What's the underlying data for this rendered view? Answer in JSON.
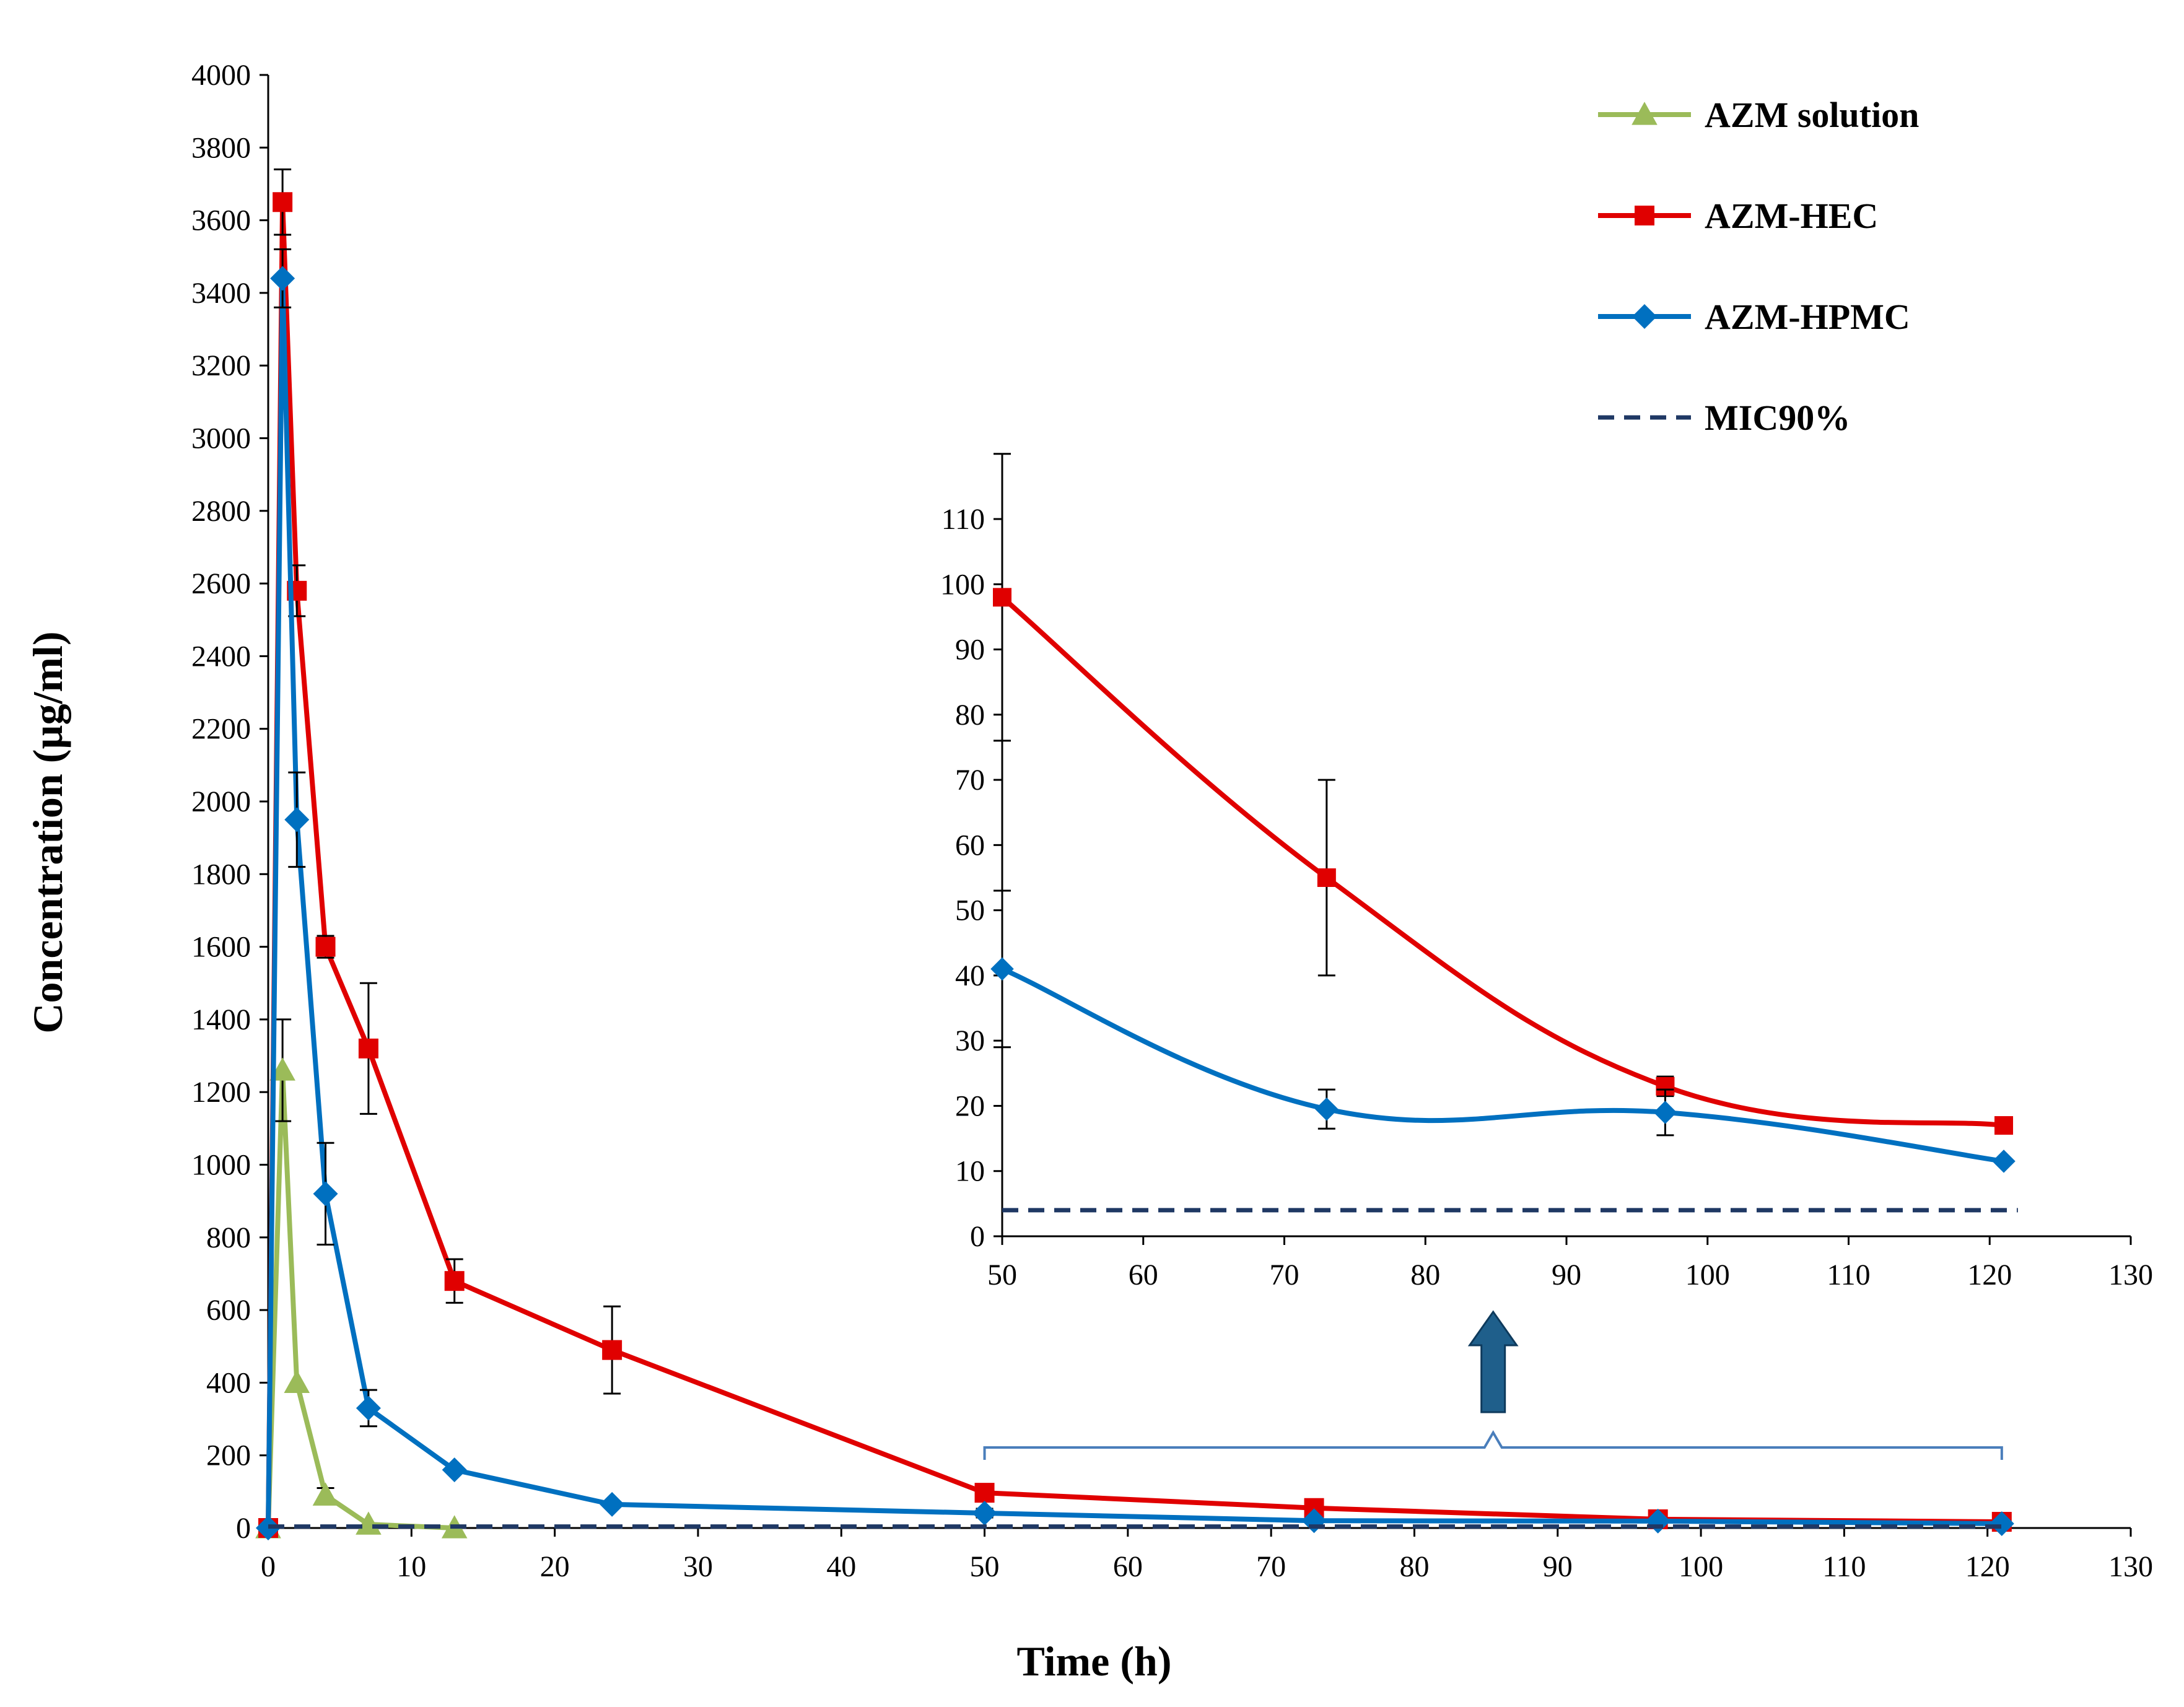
{
  "chart_data": [
    {
      "id": "main",
      "type": "line",
      "xlabel": "Time (h)",
      "ylabel": "Concentration (µg/ml)",
      "xlim": [
        0,
        130
      ],
      "ylim": [
        0,
        4000
      ],
      "xticks": [
        0,
        10,
        20,
        30,
        40,
        50,
        60,
        70,
        80,
        90,
        100,
        110,
        120,
        130
      ],
      "yticks": [
        0,
        200,
        400,
        600,
        800,
        1000,
        1200,
        1400,
        1600,
        1800,
        2000,
        2200,
        2400,
        2600,
        2800,
        3000,
        3200,
        3400,
        3600,
        3800,
        4000
      ],
      "grid": false,
      "legend_position": "top-right",
      "series": [
        {
          "name": "AZM solution",
          "color": "#9bbb59",
          "marker": "triangle",
          "x": [
            0,
            1,
            2,
            4,
            7,
            13
          ],
          "y": [
            0,
            1260,
            400,
            90,
            10,
            0
          ],
          "err": [
            0,
            140,
            0,
            20,
            0,
            0
          ]
        },
        {
          "name": "AZM-HEC",
          "color": "#e00000",
          "marker": "square",
          "x": [
            0,
            1,
            2,
            4,
            7,
            13,
            24,
            50,
            73,
            97,
            121
          ],
          "y": [
            0,
            3650,
            2580,
            1600,
            1320,
            680,
            490,
            97,
            55,
            24,
            17
          ],
          "err": [
            0,
            90,
            70,
            30,
            180,
            60,
            120,
            12,
            15,
            2,
            0
          ]
        },
        {
          "name": "AZM-HPMC",
          "color": "#0070c0",
          "marker": "diamond",
          "x": [
            0,
            1,
            2,
            4,
            7,
            13,
            24,
            50,
            73,
            97,
            121
          ],
          "y": [
            0,
            3440,
            1950,
            920,
            330,
            160,
            65,
            41,
            20,
            19,
            12
          ],
          "err": [
            0,
            80,
            130,
            140,
            50,
            0,
            0,
            12,
            3,
            4,
            0
          ]
        },
        {
          "name": "MIC90%",
          "color": "#1f3864",
          "style": "dashed",
          "x": [
            0,
            121
          ],
          "y": [
            4,
            4
          ]
        }
      ]
    },
    {
      "id": "inset",
      "type": "line",
      "xlim": [
        50,
        130
      ],
      "ylim": [
        0,
        110
      ],
      "xticks": [
        50,
        60,
        70,
        80,
        90,
        100,
        110,
        120,
        130
      ],
      "yticks": [
        0,
        10,
        20,
        30,
        40,
        50,
        60,
        70,
        80,
        90,
        100,
        110
      ],
      "grid": false,
      "series": [
        {
          "name": "AZM-HEC",
          "color": "#e00000",
          "marker": "square",
          "x": [
            50,
            73,
            97,
            121
          ],
          "y": [
            98,
            55,
            23,
            17
          ],
          "err": [
            22,
            15,
            1.5,
            0
          ]
        },
        {
          "name": "AZM-HPMC",
          "color": "#0070c0",
          "marker": "diamond",
          "x": [
            50,
            73,
            97,
            121
          ],
          "y": [
            41,
            19.5,
            19,
            11.5
          ],
          "err": [
            12,
            3,
            3.5,
            0
          ]
        },
        {
          "name": "MIC90%",
          "color": "#1f3864",
          "style": "dashed",
          "x": [
            50,
            122
          ],
          "y": [
            4,
            4
          ]
        }
      ]
    }
  ],
  "annotations": {
    "zoom_range": [
      50,
      121
    ],
    "arrow_color": "#1f5f8b",
    "bracket_color": "#4a7ebb"
  }
}
